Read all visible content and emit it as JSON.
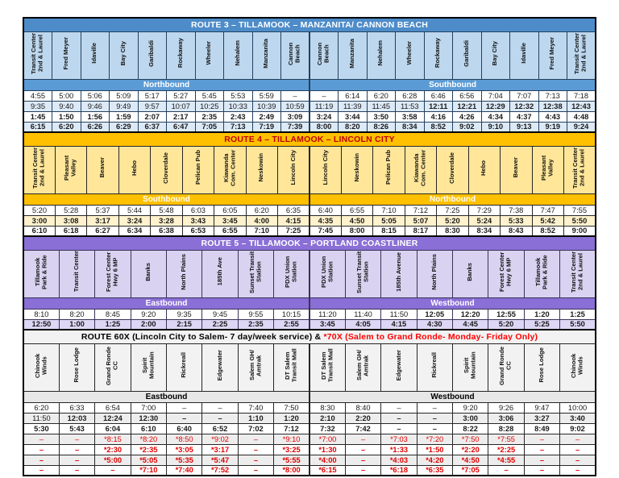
{
  "routes": [
    {
      "id": "route3",
      "title": "ROUTE 3 – TILLAMOOK – MANZANITA/ CANNON BEACH",
      "theme": {
        "header_bg": "#4E8CC9",
        "header_text": "#FFFFFF",
        "station_bg": "#BDD7EE",
        "dir_bg": "#5B9BD5",
        "dir_text": "#FFFFFF",
        "alt_row_bg": "#DCE9F6",
        "border": "#24405E",
        "red": "#E00000",
        "alt_rows": [
          0,
          1,
          0,
          1
        ]
      },
      "directions": [
        {
          "label": "Northbound",
          "stations": [
            "Transit Center 2nd & Laurel",
            "Fred Meyer",
            "Idaville",
            "Bay City",
            "Garibaldi",
            "Rockaway",
            "Wheeler",
            "Nehalem",
            "Manzanita",
            "Cannon Beach"
          ]
        },
        {
          "label": "Southbound",
          "stations": [
            "Cannon Beach",
            "Manzanita",
            "Nehalem",
            "Wheeler",
            "Rockaway",
            "Garibaldi",
            "Bay City",
            "Idaville",
            "Fred Meyer",
            "Transit Center 2nd & Laurel"
          ]
        }
      ],
      "rows": [
        {
          "cells": [
            "4:55",
            "5:00",
            "5:06",
            "5:09",
            "5:17",
            "5:27",
            "5:45",
            "5:53",
            "5:59",
            "–",
            "–",
            "6:14",
            "6:20",
            "6:28",
            "6:46",
            "6:56",
            "7:04",
            "7:07",
            "7:13",
            "7:18"
          ],
          "styles": ""
        },
        {
          "cells": [
            "9:35",
            "9:40",
            "9:46",
            "9:49",
            "9:57",
            "10:07",
            "10:25",
            "10:33",
            "10:39",
            "10:59",
            "11:19",
            "11:39",
            "11:45",
            "11:53",
            "12:11",
            "12:21",
            "12:29",
            "12:32",
            "12:38",
            "12:43"
          ],
          "styles": [
            "",
            "",
            "",
            "",
            "",
            "",
            "",
            "",
            "",
            "",
            "",
            "",
            "",
            "",
            "b",
            "b",
            "b",
            "b",
            "b",
            "b"
          ]
        },
        {
          "cells": [
            "1:45",
            "1:50",
            "1:56",
            "1:59",
            "2:07",
            "2:17",
            "2:35",
            "2:43",
            "2:49",
            "3:09",
            "3:24",
            "3:44",
            "3:50",
            "3:58",
            "4:16",
            "4:26",
            "4:34",
            "4:37",
            "4:43",
            "4:48"
          ],
          "styles": "b"
        },
        {
          "cells": [
            "6:15",
            "6:20",
            "6:26",
            "6:29",
            "6:37",
            "6:47",
            "7:05",
            "7:13",
            "7:19",
            "7:39",
            "8:00",
            "8:20",
            "8:26",
            "8:34",
            "8:52",
            "9:02",
            "9:10",
            "9:13",
            "9:19",
            "9:24"
          ],
          "styles": "b"
        }
      ]
    },
    {
      "id": "route4",
      "title": "ROUTE 4 – TILLAMOOK – LINCOLN CITY",
      "theme": {
        "header_bg": "#FFC000",
        "header_text": "#C00000",
        "station_bg": "#FFE699",
        "dir_bg": "#FFC000",
        "dir_text": "#FFFFFF",
        "alt_row_bg": "#FFF2CC",
        "border": "#262626",
        "red": "#E00000",
        "alt_rows": [
          0,
          1,
          0
        ]
      },
      "directions": [
        {
          "label": "Southbound",
          "stations": [
            "Transit Center 2nd & Laurel",
            "Pleasant Valley",
            "Beaver",
            "Hebo",
            "Cloverdale",
            "Pelican Pub",
            "Kiawanda Com. Center",
            "Neskowin",
            "Lincoln City"
          ]
        },
        {
          "label": "Northbound",
          "stations": [
            "Lincoln City",
            "Neskowin",
            "Pelican Pub",
            "Kiawanda Com. Center",
            "Cloverdale",
            "Hebo",
            "Beaver",
            "Pleasant Valley",
            "Transit Center 2nd & Laurel"
          ]
        }
      ],
      "rows": [
        {
          "cells": [
            "5:20",
            "5:28",
            "5:37",
            "5:44",
            "5:48",
            "6:03",
            "6:05",
            "6:20",
            "6:35",
            "6:40",
            "6:55",
            "7:10",
            "7:12",
            "7:25",
            "7:29",
            "7:38",
            "7:47",
            "7:55"
          ],
          "styles": ""
        },
        {
          "cells": [
            "3:00",
            "3:08",
            "3:17",
            "3:24",
            "3:28",
            "3:43",
            "3:45",
            "4:00",
            "4:15",
            "4:35",
            "4:50",
            "5:05",
            "5:07",
            "5:20",
            "5:24",
            "5:33",
            "5:42",
            "5:50"
          ],
          "styles": "b"
        },
        {
          "cells": [
            "6:10",
            "6:18",
            "6:27",
            "6:34",
            "6:38",
            "6:53",
            "6:55",
            "7:10",
            "7:25",
            "7:45",
            "8:00",
            "8:15",
            "8:17",
            "8:30",
            "8:34",
            "8:43",
            "8:52",
            "9:00"
          ],
          "styles": "b"
        }
      ]
    },
    {
      "id": "route5",
      "title": "ROUTE 5 – TILLAMOOK – PORTLAND COASTLINER",
      "theme": {
        "header_bg": "#8A6FD6",
        "header_text": "#FFFFFF",
        "station_bg": "#D9D2F0",
        "dir_bg": "#8A6FD6",
        "dir_text": "#FFFFFF",
        "alt_row_bg": "#DDD7F5",
        "border": "#3A3358",
        "red": "#E00000",
        "alt_rows": [
          0,
          1
        ]
      },
      "directions": [
        {
          "label": "Eastbound",
          "stations": [
            "Tillamook Park & Ride",
            "Transit Center",
            "Forest Center Hwy 6 MP",
            "Banks",
            "North Plains",
            "185th Ave",
            "Sunset Transit Station",
            "PDX Union Station"
          ]
        },
        {
          "label": "Westbound",
          "stations": [
            "PDX Union Station",
            "Sunset Transit Station",
            "185th Avenue",
            "North Plains",
            "Banks",
            "Forest Center Hwy 6 MP",
            "Tillamook Park & Ride",
            "Transit Center 2nd & Laurel"
          ]
        }
      ],
      "rows": [
        {
          "cells": [
            "8:10",
            "8:20",
            "8:45",
            "9:20",
            "9:35",
            "9:45",
            "9:55",
            "10:15",
            "11:20",
            "11:40",
            "11:50",
            "12:05",
            "12:20",
            "12:55",
            "1:20",
            "1:25"
          ],
          "styles": [
            "",
            "",
            "",
            "",
            "",
            "",
            "",
            "",
            "",
            "",
            "",
            "b",
            "b",
            "b",
            "b",
            "b"
          ]
        },
        {
          "cells": [
            "12:50",
            "1:00",
            "1:25",
            "2:00",
            "2:15",
            "2:25",
            "2:35",
            "2:55",
            "3:45",
            "4:05",
            "4:15",
            "4:30",
            "4:45",
            "5:20",
            "5:25",
            "5:50"
          ],
          "styles": "b"
        }
      ]
    },
    {
      "id": "route60x",
      "title": "ROUTE 60X (Lincoln City to Salem- 7 day/week service)  &",
      "title_red": "*70X (Salem to Grand Ronde- Monday- Friday Only)",
      "theme": {
        "header_bg": "#F2F2F2",
        "header_text": "#000000",
        "station_bg": "#F2F2F2",
        "dir_bg": "#E7E7E7",
        "dir_text": "#000000",
        "alt_row_bg": "#EDEDED",
        "border": "#262626",
        "red": "#E00000",
        "title_red": "#FF0000",
        "alt_rows": [
          0,
          1,
          0,
          1,
          0,
          1,
          0
        ]
      },
      "directions": [
        {
          "label": "Eastbound",
          "stations": [
            "Chinook Winds",
            "Rose Lodge",
            "Grand Ronde CC",
            "Spirit Mountain",
            "Rickreall",
            "Edgewater",
            "Salem GH/ Amtrak",
            "DT Salem Transit Mall"
          ]
        },
        {
          "label": "Westbound",
          "stations": [
            "DT Salem Transit Mall",
            "Salem GH/ Amtrak",
            "Edgewater",
            "Rickreall",
            "Spirit Mountain",
            "Grand Ronde CC",
            "Rose Lodge",
            "Chinook Winds"
          ]
        }
      ],
      "rows": [
        {
          "cells": [
            "6:20",
            "6:33",
            "6:54",
            "7:00",
            "–",
            "–",
            "7:40",
            "7:50",
            "8:30",
            "8:40",
            "–",
            "–",
            "9:20",
            "9:26",
            "9:47",
            "10:00"
          ],
          "styles": ""
        },
        {
          "cells": [
            "11:50",
            "12:03",
            "12:24",
            "12:30",
            "–",
            "–",
            "1:10",
            "1:20",
            "2:10",
            "2:20",
            "–",
            "–",
            "3:00",
            "3:06",
            "3:27",
            "3:40"
          ],
          "styles": [
            "",
            "b",
            "b",
            "b",
            "b",
            "b",
            "b",
            "b",
            "b",
            "b",
            "b",
            "b",
            "b",
            "b",
            "b",
            "b"
          ]
        },
        {
          "cells": [
            "5:30",
            "5:43",
            "6:04",
            "6:10",
            "6:40",
            "6:52",
            "7:02",
            "7:12",
            "7:32",
            "7:42",
            "–",
            "–",
            "8:22",
            "8:28",
            "8:49",
            "9:02"
          ],
          "styles": "b"
        },
        {
          "cells": [
            "–",
            "–",
            "*8:15",
            "*8:20",
            "*8:50",
            "*9:02",
            "–",
            "*9:10",
            "*7:00",
            "–",
            "*7:03",
            "*7:20",
            "*7:50",
            "*7:55",
            "–",
            "–"
          ],
          "styles": "r"
        },
        {
          "cells": [
            "–",
            "–",
            "*2:30",
            "*2:35",
            "*3:05",
            "*3:17",
            "–",
            "*3:25",
            "*1:30",
            "–",
            "*1:33",
            "*1:50",
            "*2:20",
            "*2:25",
            "–",
            "–"
          ],
          "styles": "rb"
        },
        {
          "cells": [
            "–",
            "–",
            "*5:00",
            "*5:05",
            "*5:35",
            "*5:47",
            "–",
            "*5:55",
            "*4:00",
            "–",
            "*4:03",
            "*4:20",
            "*4:50",
            "*4:55",
            "–",
            "–"
          ],
          "styles": "rb"
        },
        {
          "cells": [
            "–",
            "–",
            "–",
            "*7:10",
            "*7:40",
            "*7:52",
            "–",
            "*8:00",
            "*6:15",
            "–",
            "*6:18",
            "*6:35",
            "*7:05",
            "–",
            "–",
            "–"
          ],
          "styles": "rb"
        }
      ]
    }
  ]
}
